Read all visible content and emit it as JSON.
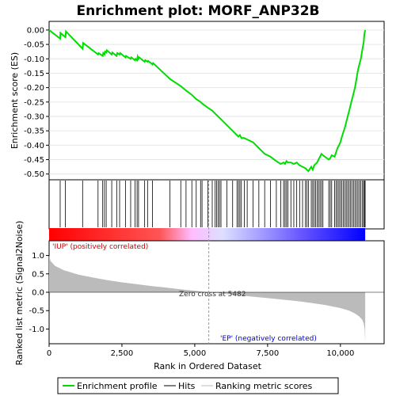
{
  "chart_data": {
    "type": "line",
    "title": "Enrichment plot: MORF_ANP32B",
    "x_axis": {
      "label": "Rank in Ordered Dataset",
      "range": [
        0,
        11500
      ],
      "ticks": [
        0,
        2500,
        5000,
        7500,
        10000
      ],
      "tick_labels": [
        "0",
        "2,500",
        "5,000",
        "7,500",
        "10,000"
      ]
    },
    "es_panel": {
      "ylabel": "Enrichment score (ES)",
      "ylim": [
        -0.52,
        0.03
      ],
      "yticks": [
        0.0,
        -0.05,
        -0.1,
        -0.15,
        -0.2,
        -0.25,
        -0.3,
        -0.35,
        -0.4,
        -0.45,
        -0.5
      ],
      "ytick_labels": [
        "0.00",
        "-0.05",
        "-0.10",
        "-0.15",
        "-0.20",
        "-0.25",
        "-0.30",
        "-0.35",
        "-0.40",
        "-0.45",
        "-0.50"
      ],
      "grid": true,
      "series": [
        {
          "name": "Enrichment profile",
          "color": "#00dd00",
          "x": [
            0,
            380,
            390,
            560,
            580,
            1150,
            1170,
            1680,
            1700,
            1840,
            1860,
            1900,
            1920,
            1960,
            1980,
            2150,
            2170,
            2320,
            2340,
            2420,
            2440,
            2620,
            2640,
            2800,
            2820,
            2950,
            2970,
            3020,
            3040,
            3070,
            3090,
            3280,
            3300,
            3380,
            3400,
            3550,
            3570,
            4150,
            4520,
            4700,
            4900,
            5050,
            5200,
            5250,
            5450,
            5600,
            5700,
            5750,
            5800,
            5850,
            5900,
            6100,
            6300,
            6450,
            6500,
            6550,
            6600,
            6700,
            6800,
            7000,
            7200,
            7400,
            7600,
            7800,
            7950,
            8050,
            8100,
            8150,
            8200,
            8300,
            8400,
            8500,
            8600,
            8700,
            8800,
            8850,
            8900,
            9000,
            9050,
            9100,
            9150,
            9200,
            9250,
            9300,
            9350,
            9400,
            9600,
            9650,
            9700,
            9800,
            9850,
            9900,
            9950,
            10000,
            10050,
            10100,
            10150,
            10200,
            10250,
            10300,
            10350,
            10400,
            10450,
            10500,
            10550,
            10600,
            10650,
            10700,
            10750,
            10800,
            10820,
            10850
          ],
          "y": [
            0.0,
            -0.03,
            -0.01,
            -0.025,
            -0.005,
            -0.065,
            -0.045,
            -0.085,
            -0.08,
            -0.09,
            -0.08,
            -0.085,
            -0.075,
            -0.078,
            -0.07,
            -0.085,
            -0.078,
            -0.09,
            -0.08,
            -0.085,
            -0.08,
            -0.095,
            -0.09,
            -0.1,
            -0.095,
            -0.105,
            -0.1,
            -0.105,
            -0.092,
            -0.1,
            -0.095,
            -0.11,
            -0.105,
            -0.11,
            -0.107,
            -0.12,
            -0.115,
            -0.17,
            -0.195,
            -0.21,
            -0.225,
            -0.24,
            -0.25,
            -0.255,
            -0.27,
            -0.28,
            -0.29,
            -0.295,
            -0.3,
            -0.305,
            -0.31,
            -0.33,
            -0.35,
            -0.365,
            -0.37,
            -0.365,
            -0.375,
            -0.375,
            -0.38,
            -0.39,
            -0.41,
            -0.43,
            -0.44,
            -0.455,
            -0.465,
            -0.46,
            -0.465,
            -0.455,
            -0.46,
            -0.46,
            -0.465,
            -0.46,
            -0.47,
            -0.475,
            -0.48,
            -0.485,
            -0.49,
            -0.475,
            -0.485,
            -0.47,
            -0.465,
            -0.46,
            -0.45,
            -0.44,
            -0.43,
            -0.435,
            -0.45,
            -0.445,
            -0.435,
            -0.44,
            -0.425,
            -0.41,
            -0.4,
            -0.39,
            -0.37,
            -0.355,
            -0.34,
            -0.32,
            -0.3,
            -0.28,
            -0.26,
            -0.24,
            -0.22,
            -0.2,
            -0.17,
            -0.14,
            -0.12,
            -0.1,
            -0.07,
            -0.04,
            -0.015,
            0.0
          ]
        }
      ]
    },
    "hits_panel": {
      "gradient_left_color": "#ff0000",
      "gradient_right_color": "#0000ff",
      "hit_positions": [
        380,
        560,
        1150,
        1680,
        1840,
        1900,
        1960,
        2150,
        2320,
        2420,
        2620,
        2800,
        2950,
        3020,
        3070,
        3280,
        3380,
        3550,
        4150,
        4520,
        4700,
        4900,
        5050,
        5200,
        5250,
        5450,
        5600,
        5700,
        5750,
        5800,
        5850,
        5900,
        6100,
        6300,
        6450,
        6500,
        6550,
        6600,
        6700,
        6800,
        7000,
        7200,
        7400,
        7600,
        7800,
        7950,
        8050,
        8100,
        8150,
        8200,
        8300,
        8400,
        8500,
        8600,
        8700,
        8800,
        8850,
        8900,
        9000,
        9050,
        9100,
        9150,
        9200,
        9250,
        9300,
        9350,
        9400,
        9600,
        9650,
        9700,
        9800,
        9850,
        9900,
        9950,
        10000,
        10050,
        10100,
        10150,
        10200,
        10250,
        10300,
        10350,
        10400,
        10450,
        10500,
        10550,
        10600,
        10650,
        10700,
        10750,
        10800,
        10820,
        10850
      ]
    },
    "metric_panel": {
      "ylabel": "Ranked list metric (Signal2Noise)",
      "ylim": [
        -1.4,
        1.4
      ],
      "yticks": [
        1.0,
        0.5,
        0.0,
        -0.5,
        -1.0
      ],
      "ytick_labels": [
        "1.0",
        "0.5",
        "0.0",
        "-0.5",
        "-1.0"
      ],
      "fill_color": "#bbbbbb",
      "x": [
        0,
        50,
        200,
        500,
        1000,
        1500,
        2000,
        2500,
        3000,
        3500,
        4000,
        4500,
        5000,
        5482,
        6000,
        6500,
        7000,
        7500,
        8000,
        8500,
        9000,
        9500,
        10000,
        10300,
        10500,
        10650,
        10750,
        10800,
        10830,
        10850
      ],
      "y": [
        1.0,
        0.85,
        0.72,
        0.6,
        0.48,
        0.4,
        0.33,
        0.27,
        0.22,
        0.17,
        0.13,
        0.08,
        0.04,
        0.0,
        -0.04,
        -0.08,
        -0.12,
        -0.16,
        -0.2,
        -0.24,
        -0.29,
        -0.35,
        -0.43,
        -0.5,
        -0.58,
        -0.66,
        -0.75,
        -0.85,
        -1.0,
        -1.35
      ]
    },
    "zero_cross": 5482,
    "annotations": {
      "positive": "'IUP' (positively correlated)",
      "negative": "'EP' (negatively correlated)",
      "zero_cross": "Zero cross at 5482"
    },
    "legend": {
      "placement": "bottom",
      "items": [
        {
          "label": "Enrichment profile",
          "color": "#00dd00"
        },
        {
          "label": "Hits",
          "color": "#000000"
        },
        {
          "label": "Ranking metric scores",
          "color": "#bbbbbb"
        }
      ]
    }
  }
}
